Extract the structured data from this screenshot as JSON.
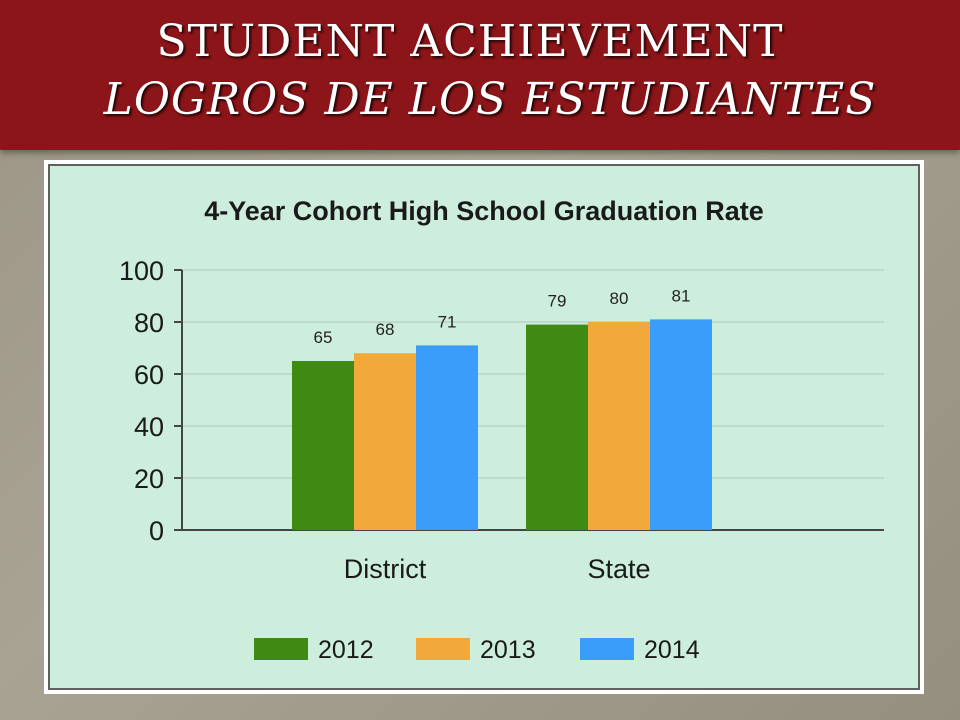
{
  "slide": {
    "title_line1": "Student Achievement",
    "title_line2": "Logros de los Estudiantes"
  },
  "colors": {
    "banner": "#8b1518",
    "chart_bg": "#cdeedd",
    "series_2012": "#3f8a12",
    "series_2013": "#f2a93a",
    "series_2014": "#3a9dfa"
  },
  "chart_data": {
    "type": "bar",
    "title": "4-Year Cohort High School Graduation Rate",
    "xlabel": "",
    "ylabel": "",
    "categories": [
      "District",
      "State"
    ],
    "series": [
      {
        "name": "2012",
        "values": [
          65,
          79
        ]
      },
      {
        "name": "2013",
        "values": [
          68,
          80
        ]
      },
      {
        "name": "2014",
        "values": [
          71,
          81
        ]
      }
    ],
    "ylim": [
      0,
      100
    ],
    "yticks": [
      0,
      20,
      40,
      60,
      80,
      100
    ],
    "data_labels": true,
    "grid": true,
    "legend_position": "bottom"
  }
}
